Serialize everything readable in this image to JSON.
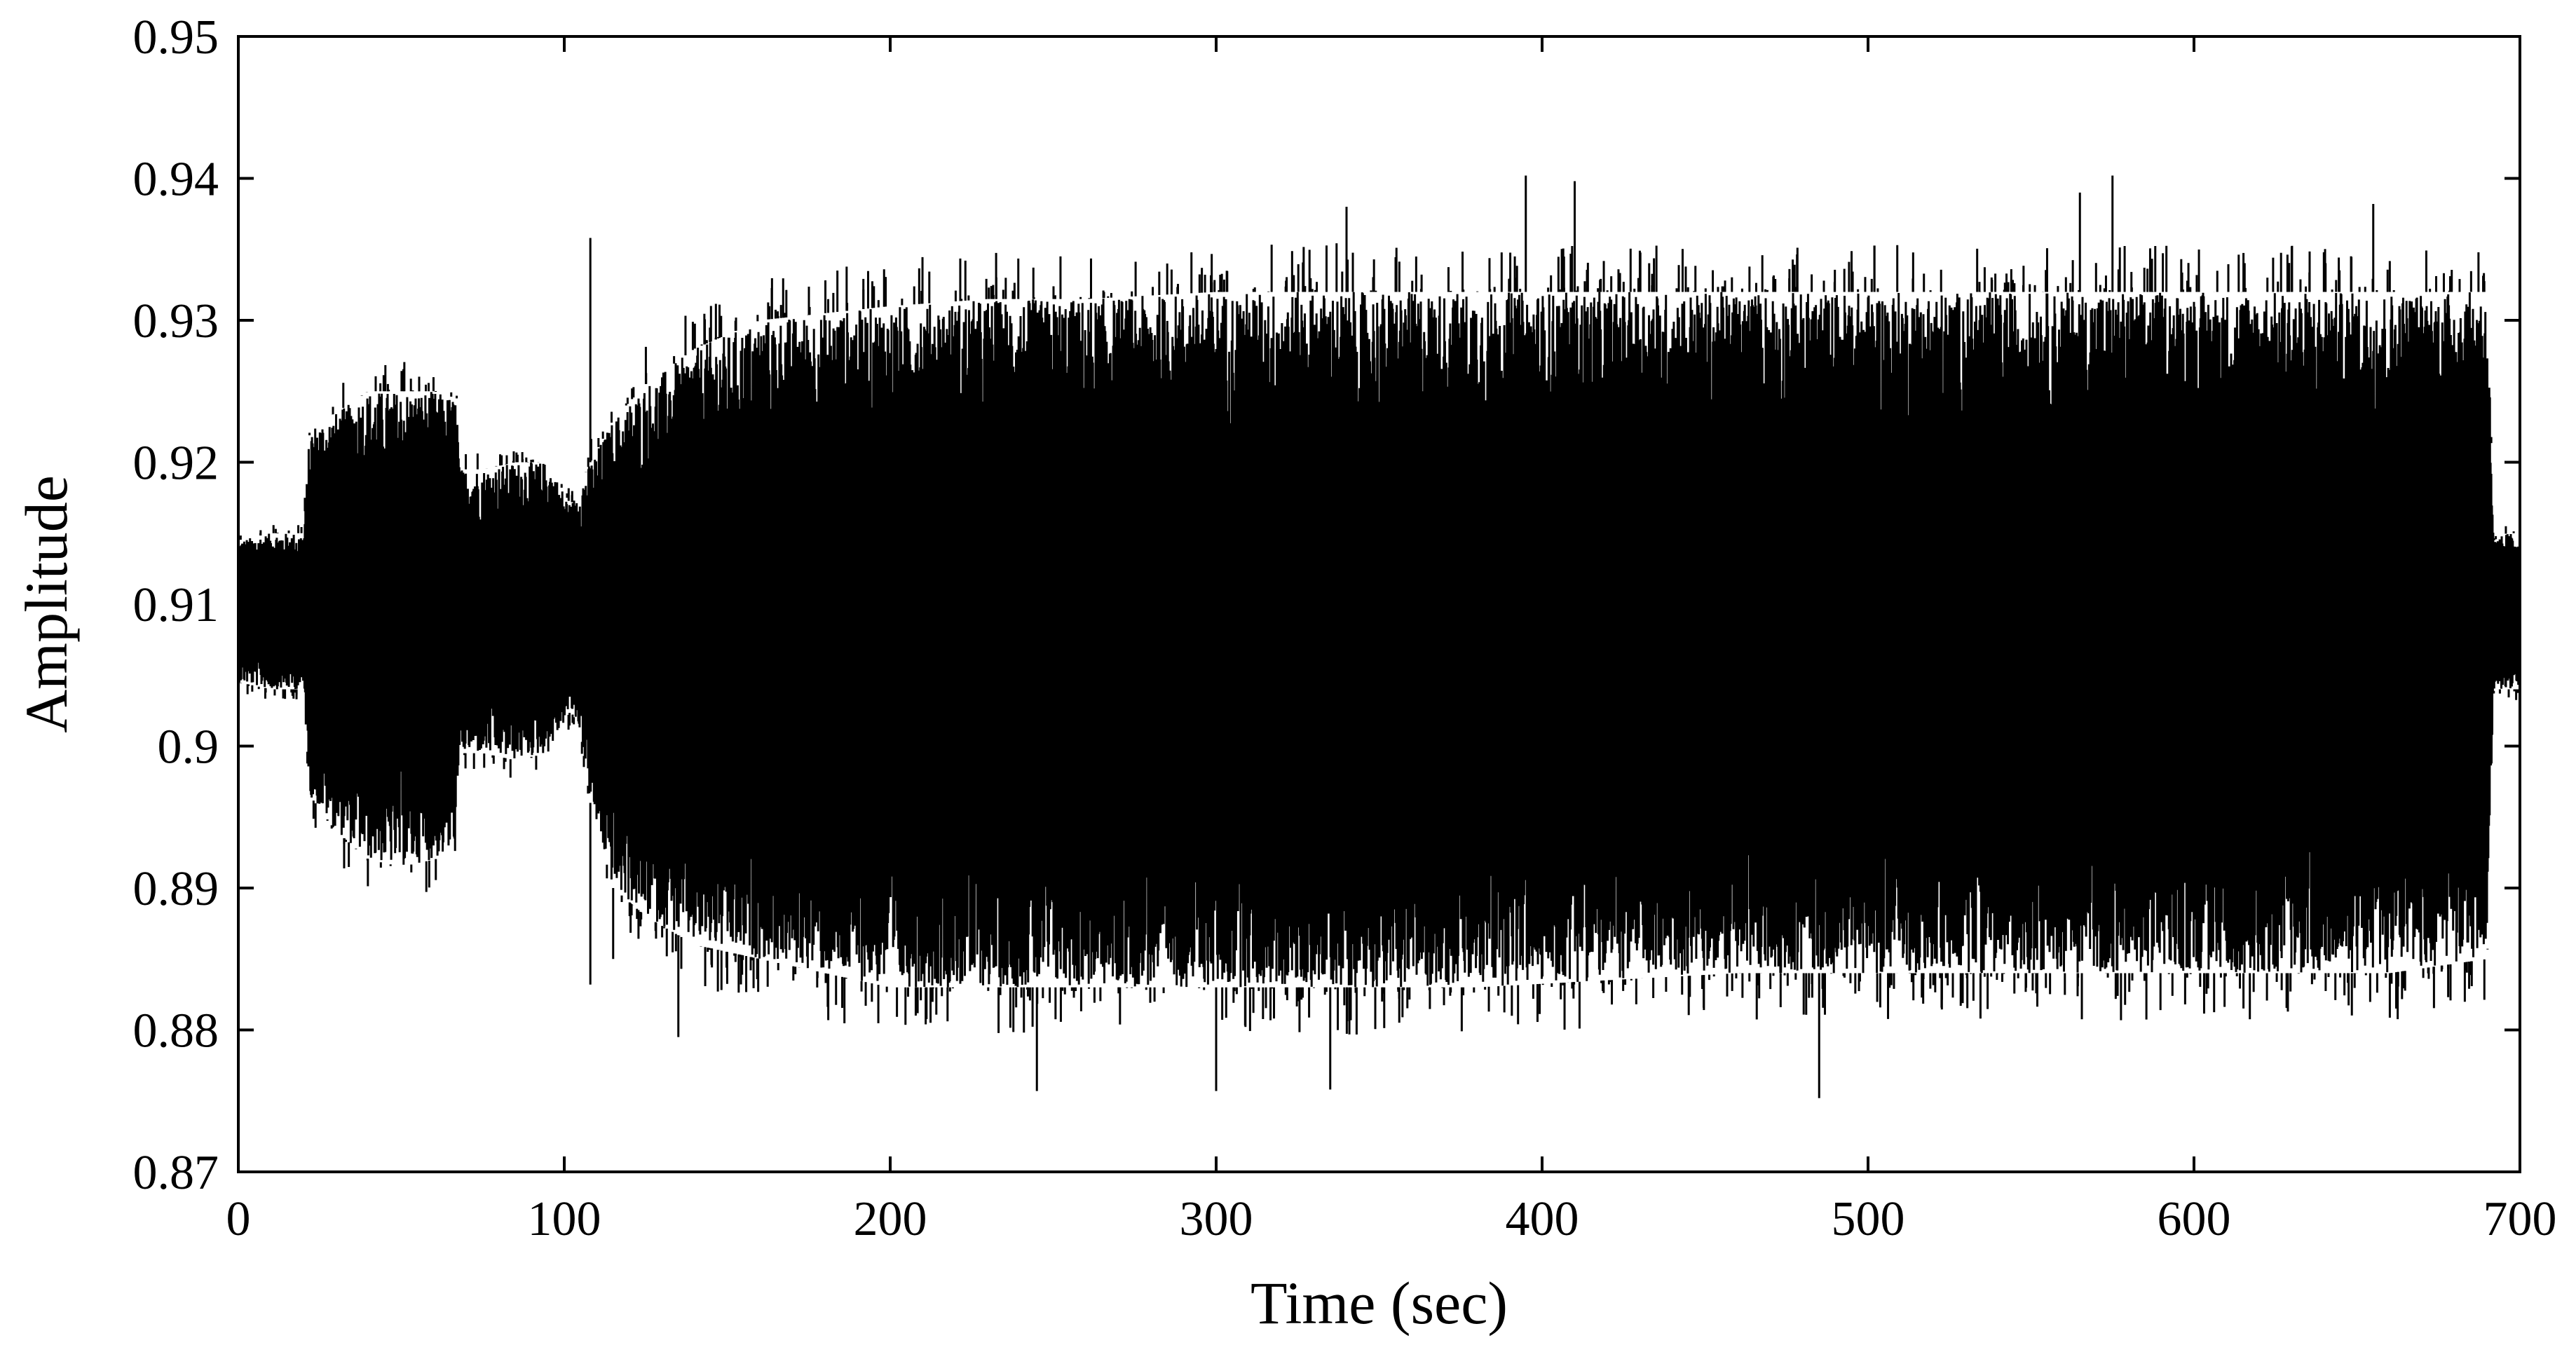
{
  "chart_data": {
    "type": "line",
    "title": "",
    "xlabel": "Time (sec)",
    "ylabel": "Amplitude",
    "xlim": [
      0,
      700
    ],
    "ylim": [
      0.87,
      0.95
    ],
    "xticks": [
      0,
      100,
      200,
      300,
      400,
      500,
      600,
      700
    ],
    "yticks": [
      0.87,
      0.88,
      0.89,
      0.9,
      0.91,
      0.92,
      0.93,
      0.94,
      0.95
    ],
    "xtick_labels": [
      "0",
      "100",
      "200",
      "300",
      "400",
      "500",
      "600",
      "700"
    ],
    "ytick_labels": [
      "0.87",
      "0.88",
      "0.89",
      "0.9",
      "0.91",
      "0.92",
      "0.93",
      "0.94",
      "0.95"
    ],
    "grid": false,
    "legend": "none",
    "series_color": "#000000",
    "envelope": {
      "t": [
        0,
        10,
        20,
        22,
        30,
        40,
        50,
        60,
        67,
        68,
        75,
        85,
        95,
        102,
        105,
        108,
        115,
        125,
        140,
        160,
        180,
        200,
        230,
        260,
        300,
        340,
        380,
        420,
        460,
        500,
        540,
        580,
        620,
        660,
        690,
        692,
        696,
        700
      ],
      "upper": [
        0.9145,
        0.915,
        0.915,
        0.9225,
        0.9235,
        0.925,
        0.925,
        0.925,
        0.9245,
        0.9195,
        0.9195,
        0.92,
        0.92,
        0.917,
        0.9185,
        0.92,
        0.923,
        0.9255,
        0.928,
        0.93,
        0.9305,
        0.931,
        0.9315,
        0.9315,
        0.932,
        0.932,
        0.932,
        0.932,
        0.932,
        0.932,
        0.932,
        0.932,
        0.932,
        0.932,
        0.932,
        0.9145,
        0.915,
        0.915
      ],
      "lower": [
        0.9045,
        0.904,
        0.904,
        0.8965,
        0.894,
        0.892,
        0.8915,
        0.892,
        0.8925,
        0.8995,
        0.8995,
        0.899,
        0.8995,
        0.9025,
        0.901,
        0.896,
        0.89,
        0.888,
        0.886,
        0.885,
        0.884,
        0.883,
        0.883,
        0.883,
        0.883,
        0.883,
        0.883,
        0.8835,
        0.884,
        0.884,
        0.884,
        0.884,
        0.884,
        0.884,
        0.885,
        0.904,
        0.904,
        0.904
      ]
    },
    "spikes": [
      {
        "t": 108,
        "y": 0.9358
      },
      {
        "t": 108,
        "y": 0.8832
      },
      {
        "t": 115,
        "y": 0.885
      },
      {
        "t": 135,
        "y": 0.8795
      },
      {
        "t": 340,
        "y": 0.938
      },
      {
        "t": 395,
        "y": 0.9402
      },
      {
        "t": 410,
        "y": 0.9398
      },
      {
        "t": 245,
        "y": 0.8757
      },
      {
        "t": 300,
        "y": 0.8757
      },
      {
        "t": 335,
        "y": 0.8758
      },
      {
        "t": 485,
        "y": 0.8752
      },
      {
        "t": 575,
        "y": 0.9402
      },
      {
        "t": 565,
        "y": 0.939
      },
      {
        "t": 655,
        "y": 0.9382
      }
    ]
  }
}
